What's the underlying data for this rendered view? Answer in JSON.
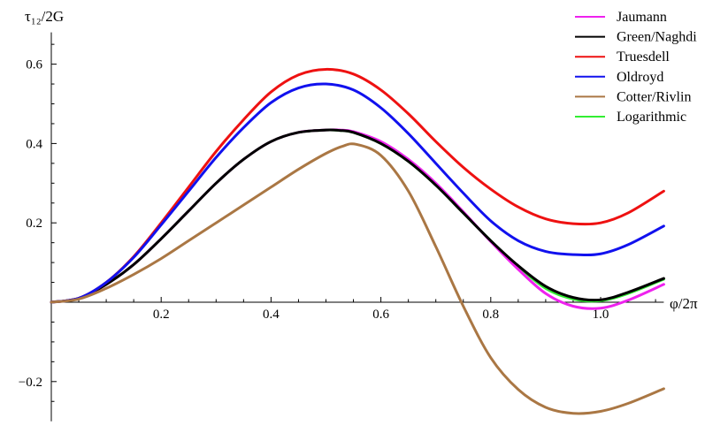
{
  "chart_data": {
    "type": "line",
    "xlabel": "φ/2π",
    "ylabel": "τ₁₂/2G",
    "xlim": [
      0,
      1.115
    ],
    "ylim": [
      -0.3,
      0.68
    ],
    "xticks": [
      0.2,
      0.4,
      0.6,
      0.8,
      1.0
    ],
    "xtick_labels": [
      "0.2",
      "0.4",
      "0.6",
      "0.8",
      "1.0"
    ],
    "yticks": [
      -0.2,
      0.2,
      0.4,
      0.6
    ],
    "ytick_labels": [
      "−0.2",
      "0.2",
      "0.4",
      "0.6"
    ],
    "legend_position": "top-right",
    "grid": false,
    "series": [
      {
        "name": "Logarithmic",
        "color": "#33ee33",
        "x": [
          0,
          0.05,
          0.1,
          0.15,
          0.2,
          0.25,
          0.3,
          0.35,
          0.4,
          0.45,
          0.5,
          0.525,
          0.55,
          0.6,
          0.65,
          0.7,
          0.75,
          0.8,
          0.85,
          0.9,
          0.95,
          1.0,
          1.05,
          1.115
        ],
        "y": [
          0,
          0.01,
          0.045,
          0.095,
          0.16,
          0.23,
          0.3,
          0.36,
          0.405,
          0.428,
          0.434,
          0.433,
          0.428,
          0.4,
          0.355,
          0.295,
          0.225,
          0.155,
          0.09,
          0.035,
          0.008,
          0.004,
          0.022,
          0.058
        ]
      },
      {
        "name": "Jaumann",
        "color": "#ee22ee",
        "x": [
          0,
          0.05,
          0.1,
          0.15,
          0.2,
          0.25,
          0.3,
          0.35,
          0.4,
          0.45,
          0.5,
          0.525,
          0.55,
          0.6,
          0.65,
          0.7,
          0.75,
          0.8,
          0.85,
          0.9,
          0.95,
          1.0,
          1.05,
          1.115
        ],
        "y": [
          0,
          0.01,
          0.045,
          0.095,
          0.16,
          0.23,
          0.3,
          0.36,
          0.405,
          0.428,
          0.434,
          0.434,
          0.43,
          0.405,
          0.36,
          0.3,
          0.228,
          0.153,
          0.083,
          0.022,
          -0.01,
          -0.015,
          0.005,
          0.045
        ]
      },
      {
        "name": "Green/Naghdi",
        "color": "#000000",
        "x": [
          0,
          0.05,
          0.1,
          0.15,
          0.2,
          0.25,
          0.3,
          0.35,
          0.4,
          0.45,
          0.5,
          0.525,
          0.55,
          0.6,
          0.65,
          0.7,
          0.75,
          0.8,
          0.85,
          0.9,
          0.95,
          1.0,
          1.05,
          1.115
        ],
        "y": [
          0,
          0.01,
          0.045,
          0.095,
          0.16,
          0.23,
          0.3,
          0.36,
          0.405,
          0.428,
          0.434,
          0.433,
          0.428,
          0.4,
          0.355,
          0.295,
          0.225,
          0.155,
          0.092,
          0.04,
          0.012,
          0.006,
          0.025,
          0.06
        ]
      },
      {
        "name": "Truesdell",
        "color": "#ee1111",
        "x": [
          0,
          0.05,
          0.1,
          0.15,
          0.2,
          0.25,
          0.3,
          0.35,
          0.4,
          0.45,
          0.5,
          0.55,
          0.6,
          0.65,
          0.7,
          0.75,
          0.8,
          0.85,
          0.9,
          0.95,
          1.0,
          1.05,
          1.115
        ],
        "y": [
          0,
          0.01,
          0.05,
          0.115,
          0.2,
          0.29,
          0.38,
          0.46,
          0.53,
          0.573,
          0.587,
          0.575,
          0.535,
          0.475,
          0.405,
          0.34,
          0.285,
          0.24,
          0.21,
          0.198,
          0.2,
          0.225,
          0.28
        ]
      },
      {
        "name": "Oldroyd",
        "color": "#1111ee",
        "x": [
          0,
          0.05,
          0.1,
          0.15,
          0.2,
          0.25,
          0.3,
          0.35,
          0.4,
          0.45,
          0.5,
          0.55,
          0.6,
          0.65,
          0.7,
          0.75,
          0.8,
          0.85,
          0.9,
          0.95,
          1.0,
          1.05,
          1.115
        ],
        "y": [
          0,
          0.01,
          0.05,
          0.113,
          0.195,
          0.28,
          0.365,
          0.44,
          0.503,
          0.54,
          0.55,
          0.535,
          0.49,
          0.425,
          0.35,
          0.275,
          0.205,
          0.155,
          0.128,
          0.12,
          0.122,
          0.145,
          0.192
        ]
      },
      {
        "name": "Cotter/Rivlin",
        "color": "#aa7744",
        "x": [
          0,
          0.05,
          0.1,
          0.15,
          0.2,
          0.25,
          0.3,
          0.35,
          0.4,
          0.45,
          0.5,
          0.53,
          0.555,
          0.6,
          0.65,
          0.7,
          0.75,
          0.8,
          0.85,
          0.9,
          0.95,
          1.0,
          1.05,
          1.115
        ],
        "y": [
          0,
          0.008,
          0.035,
          0.07,
          0.11,
          0.155,
          0.2,
          0.245,
          0.29,
          0.335,
          0.375,
          0.393,
          0.398,
          0.37,
          0.28,
          0.14,
          -0.01,
          -0.14,
          -0.22,
          -0.265,
          -0.28,
          -0.275,
          -0.255,
          -0.218
        ]
      }
    ],
    "legend_order": [
      "Jaumann",
      "Green/Naghdi",
      "Truesdell",
      "Oldroyd",
      "Cotter/Rivlin",
      "Logarithmic"
    ]
  }
}
